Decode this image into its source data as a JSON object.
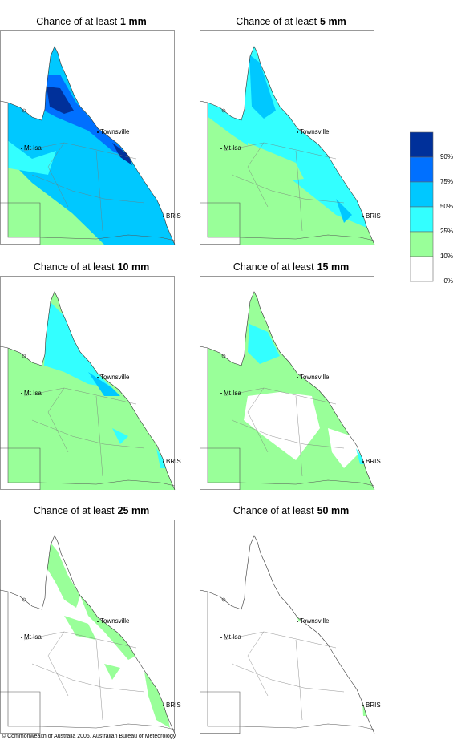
{
  "panels": [
    {
      "title_prefix": "Chance of at least",
      "amount": "1 mm"
    },
    {
      "title_prefix": "Chance of at least",
      "amount": "5 mm"
    },
    {
      "title_prefix": "Chance of at least",
      "amount": "10 mm"
    },
    {
      "title_prefix": "Chance of at least",
      "amount": "15 mm"
    },
    {
      "title_prefix": "Chance of at least",
      "amount": "25 mm"
    },
    {
      "title_prefix": "Chance of at least",
      "amount": "50 mm"
    }
  ],
  "places": [
    "Townsville",
    "Mt Isa",
    "BRIS"
  ],
  "legend": {
    "colors": [
      "#00309a",
      "#0070ff",
      "#00c8ff",
      "#33ffff",
      "#99ff99",
      "#ffffff"
    ],
    "labels": [
      "90%",
      "75%",
      "50%",
      "25%",
      "10%",
      "0%"
    ]
  },
  "copyright": "© Commonwealth of Australia 2006, Australian Bureau of Meteorology"
}
